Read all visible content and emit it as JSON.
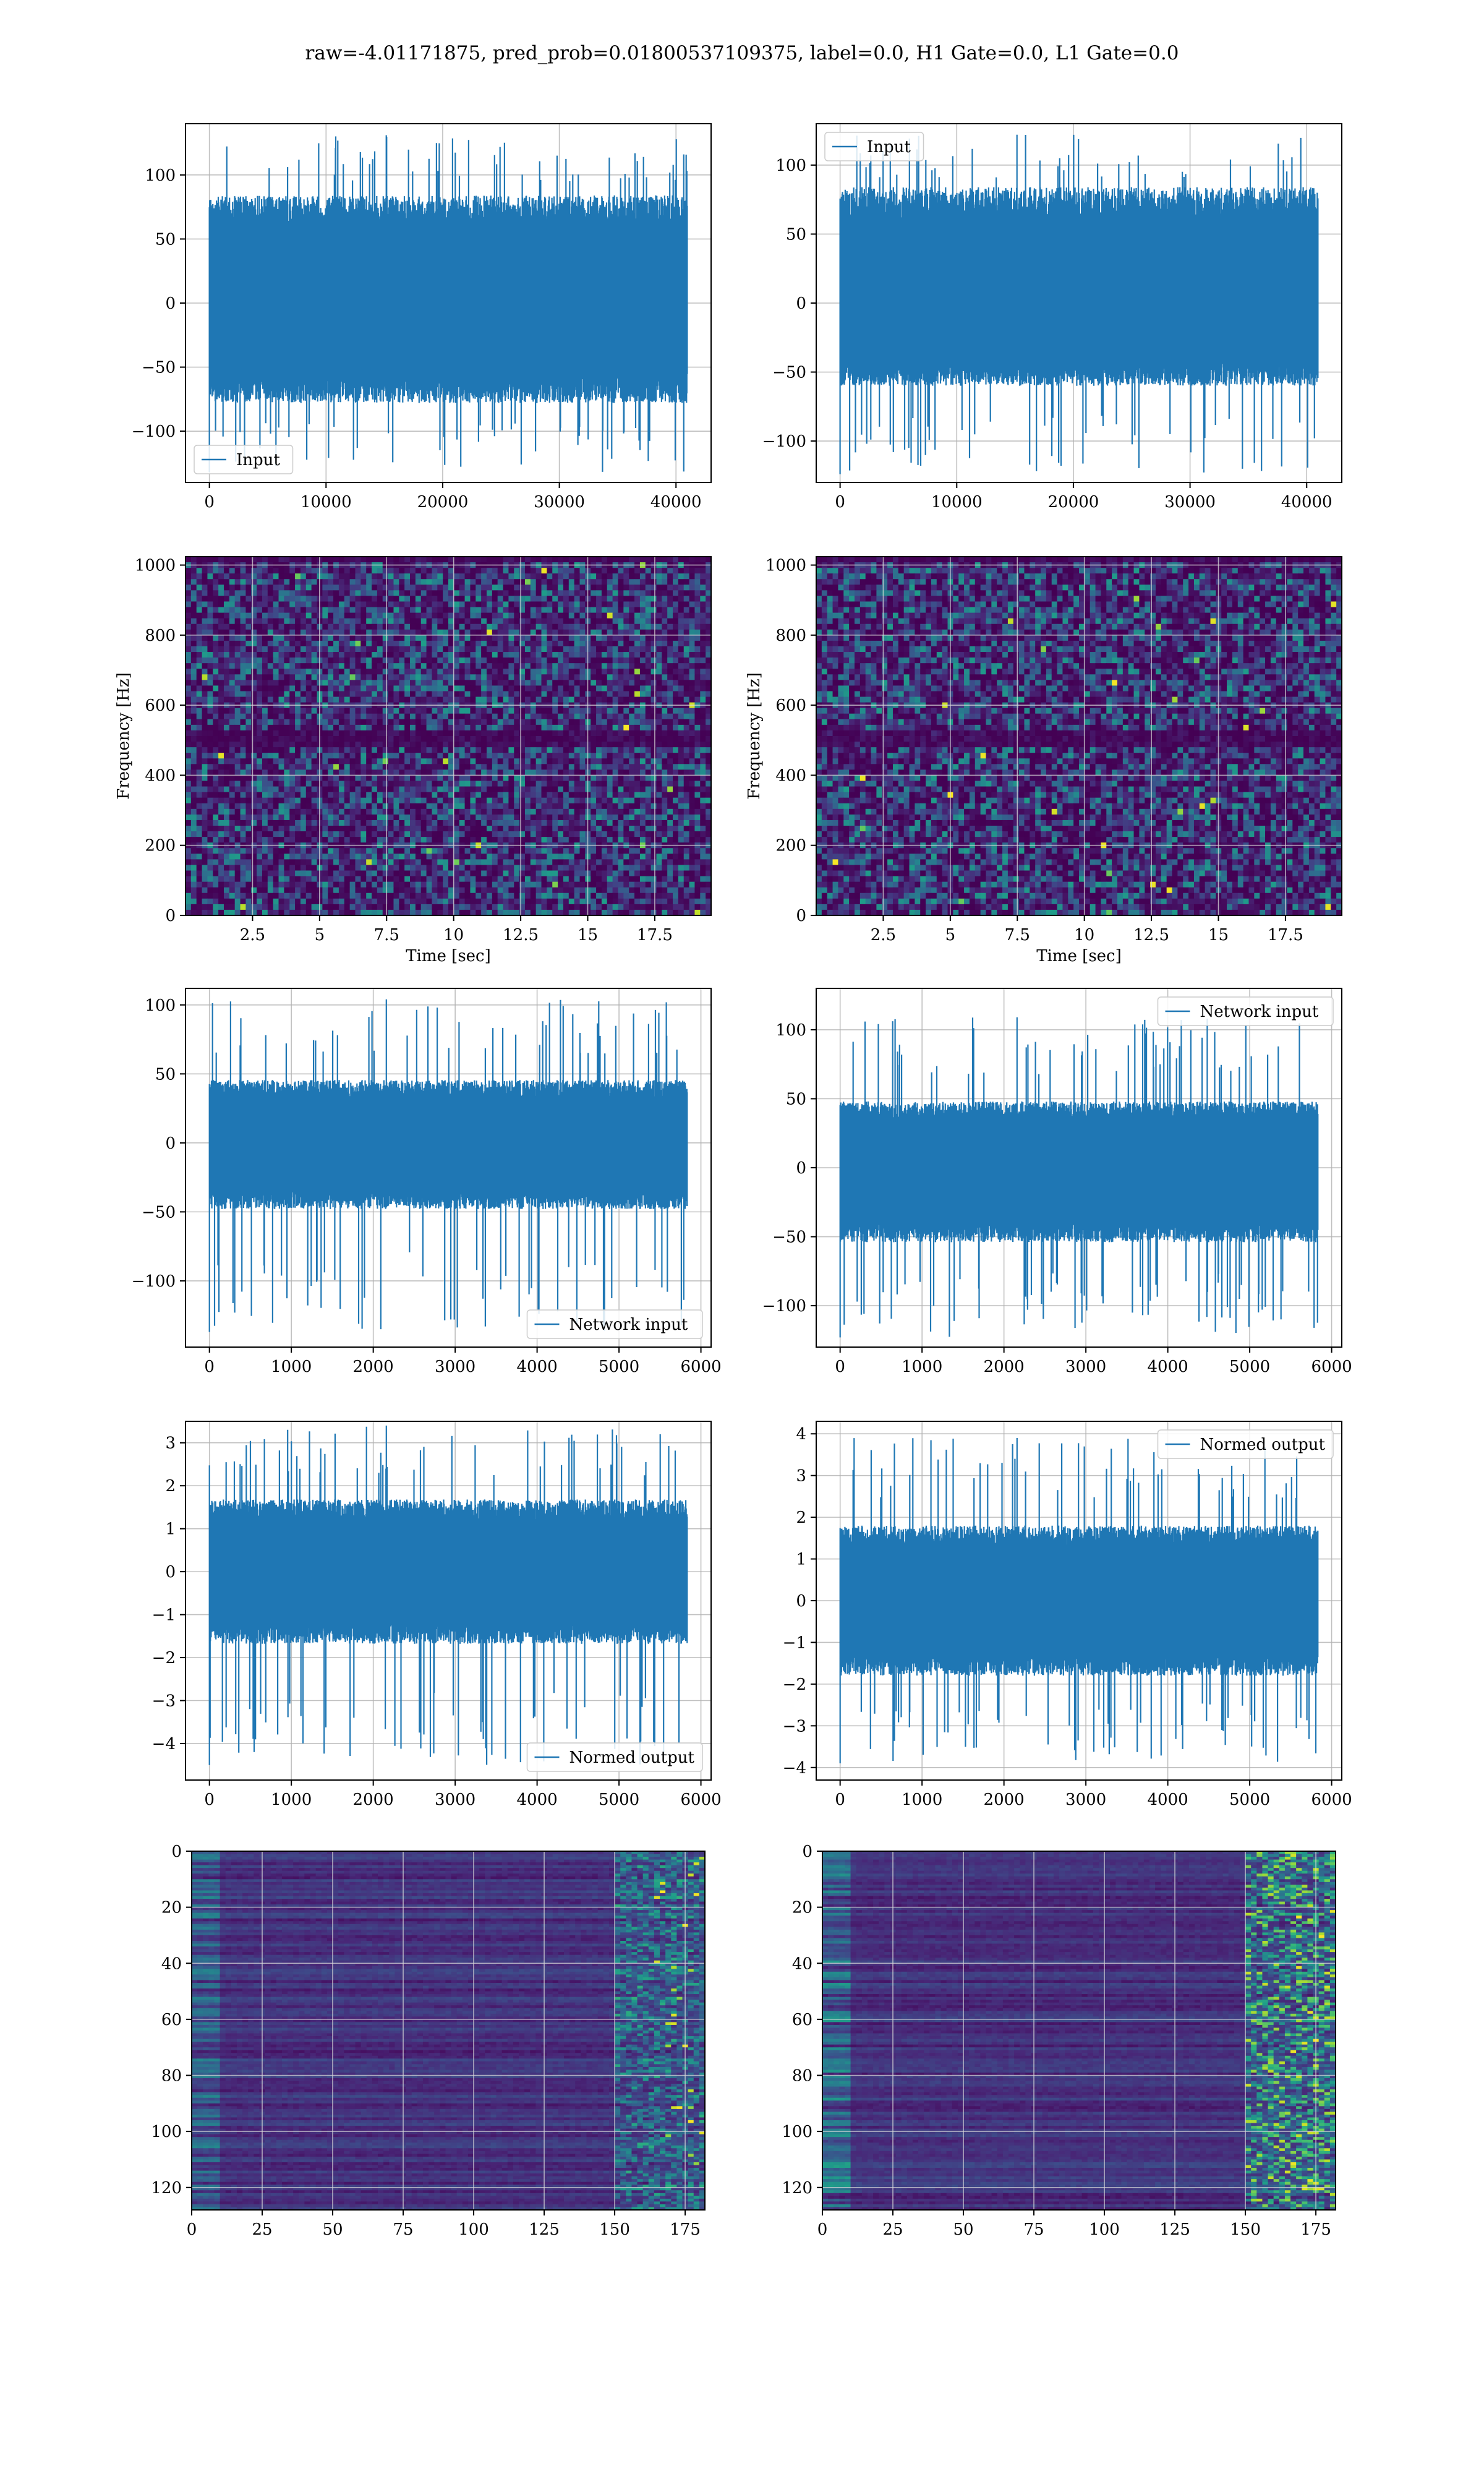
{
  "figure": {
    "title": "raw=-4.01171875, pred_prob=0.01800537109375, label=0.0, H1 Gate=0.0, L1 Gate=0.0"
  },
  "colors": {
    "series": "#1f77b4",
    "grid": "#b0b0b0",
    "viridis_low": "#440154",
    "viridis_mid": "#21918c",
    "viridis_high": "#fde725"
  },
  "chart_data": [
    {
      "id": "input-h1",
      "type": "line",
      "title": "",
      "xlabel": "",
      "ylabel": "",
      "xlim": [
        -2048,
        43008
      ],
      "ylim": [
        -140,
        140
      ],
      "xticks": [
        0,
        10000,
        20000,
        30000,
        40000
      ],
      "yticks": [
        -100,
        -50,
        0,
        50,
        100
      ],
      "grid": true,
      "legend": "lower left",
      "series": [
        {
          "name": "Input",
          "n": 40960,
          "x_range": [
            0,
            40960
          ],
          "center": 0,
          "band": [
            -65,
            70
          ],
          "extremes": [
            -132,
            131
          ]
        }
      ]
    },
    {
      "id": "input-l1",
      "type": "line",
      "title": "",
      "xlabel": "",
      "ylabel": "",
      "xlim": [
        -2048,
        43008
      ],
      "ylim": [
        -130,
        130
      ],
      "xticks": [
        0,
        10000,
        20000,
        30000,
        40000
      ],
      "yticks": [
        -100,
        -50,
        0,
        50,
        100
      ],
      "grid": true,
      "legend": "upper left",
      "series": [
        {
          "name": "Input",
          "n": 40960,
          "x_range": [
            0,
            40960
          ],
          "center": 0,
          "band": [
            -50,
            70
          ],
          "extremes": [
            -124,
            122
          ]
        }
      ]
    },
    {
      "id": "spectrogram-h1",
      "type": "heatmap",
      "title": "",
      "xlabel": "Time [sec]",
      "ylabel": "Frequency [Hz]",
      "xlim": [
        0,
        19.6
      ],
      "ylim": [
        0,
        1024
      ],
      "xticks": [
        2.5,
        5.0,
        7.5,
        10.0,
        12.5,
        15.0,
        17.5
      ],
      "yticks": [
        0,
        200,
        400,
        600,
        800,
        1000
      ],
      "grid": true,
      "colormap": "viridis",
      "dark_band_hz": 500
    },
    {
      "id": "spectrogram-l1",
      "type": "heatmap",
      "title": "",
      "xlabel": "Time [sec]",
      "ylabel": "Frequency [Hz]",
      "xlim": [
        0,
        19.6
      ],
      "ylim": [
        0,
        1024
      ],
      "xticks": [
        2.5,
        5.0,
        7.5,
        10.0,
        12.5,
        15.0,
        17.5
      ],
      "yticks": [
        0,
        200,
        400,
        600,
        800,
        1000
      ],
      "grid": true,
      "colormap": "viridis",
      "dark_band_hz": 500
    },
    {
      "id": "network-input-h1",
      "type": "line",
      "title": "",
      "xlabel": "",
      "ylabel": "",
      "xlim": [
        -292,
        6124
      ],
      "ylim": [
        -148,
        112
      ],
      "xticks": [
        0,
        1000,
        2000,
        3000,
        4000,
        5000,
        6000
      ],
      "yticks": [
        -100,
        -50,
        0,
        50,
        100
      ],
      "grid": true,
      "legend": "lower right",
      "series": [
        {
          "name": "Network input",
          "n": 5832,
          "x_range": [
            0,
            5832
          ],
          "center": 0,
          "band": [
            -40,
            38
          ],
          "extremes": [
            -137,
            104
          ]
        }
      ]
    },
    {
      "id": "network-input-l1",
      "type": "line",
      "title": "",
      "xlabel": "",
      "ylabel": "",
      "xlim": [
        -292,
        6124
      ],
      "ylim": [
        -130,
        130
      ],
      "xticks": [
        0,
        1000,
        2000,
        3000,
        4000,
        5000,
        6000
      ],
      "yticks": [
        -100,
        -50,
        0,
        50,
        100
      ],
      "grid": true,
      "legend": "upper right",
      "series": [
        {
          "name": "Network input",
          "n": 5832,
          "x_range": [
            0,
            5832
          ],
          "center": 0,
          "band": [
            -45,
            40
          ],
          "extremes": [
            -123,
            109
          ]
        }
      ]
    },
    {
      "id": "normed-output-h1",
      "type": "line",
      "title": "",
      "xlabel": "",
      "ylabel": "",
      "xlim": [
        -292,
        6124
      ],
      "ylim": [
        -4.85,
        3.5
      ],
      "xticks": [
        0,
        1000,
        2000,
        3000,
        4000,
        5000,
        6000
      ],
      "yticks": [
        -4,
        -3,
        -2,
        -1,
        0,
        1,
        2,
        3
      ],
      "grid": true,
      "legend": "lower right",
      "series": [
        {
          "name": "Normed output",
          "n": 5832,
          "x_range": [
            0,
            5832
          ],
          "center": 0,
          "band": [
            -1.4,
            1.4
          ],
          "extremes": [
            -4.5,
            3.4
          ]
        }
      ]
    },
    {
      "id": "normed-output-l1",
      "type": "line",
      "title": "",
      "xlabel": "",
      "ylabel": "",
      "xlim": [
        -292,
        6124
      ],
      "ylim": [
        -4.3,
        4.3
      ],
      "xticks": [
        0,
        1000,
        2000,
        3000,
        4000,
        5000,
        6000
      ],
      "yticks": [
        -4,
        -3,
        -2,
        -1,
        0,
        1,
        2,
        3,
        4
      ],
      "grid": true,
      "legend": "upper right",
      "series": [
        {
          "name": "Normed output",
          "n": 5832,
          "x_range": [
            0,
            5832
          ],
          "center": 0,
          "band": [
            -1.5,
            1.5
          ],
          "extremes": [
            -3.9,
            3.9
          ]
        }
      ]
    },
    {
      "id": "feature-map-h1",
      "type": "heatmap",
      "title": "",
      "xlabel": "",
      "ylabel": "",
      "xlim": [
        0,
        182
      ],
      "ylim": [
        128,
        0
      ],
      "xticks": [
        0,
        25,
        50,
        75,
        100,
        125,
        150,
        175
      ],
      "yticks": [
        0,
        20,
        40,
        60,
        80,
        100,
        120
      ],
      "grid": true,
      "colormap": "viridis",
      "shape": [
        128,
        182
      ]
    },
    {
      "id": "feature-map-l1",
      "type": "heatmap",
      "title": "",
      "xlabel": "",
      "ylabel": "",
      "xlim": [
        0,
        182
      ],
      "ylim": [
        128,
        0
      ],
      "xticks": [
        0,
        25,
        50,
        75,
        100,
        125,
        150,
        175
      ],
      "yticks": [
        0,
        20,
        40,
        60,
        80,
        100,
        120
      ],
      "grid": true,
      "colormap": "viridis",
      "shape": [
        128,
        182
      ]
    }
  ]
}
